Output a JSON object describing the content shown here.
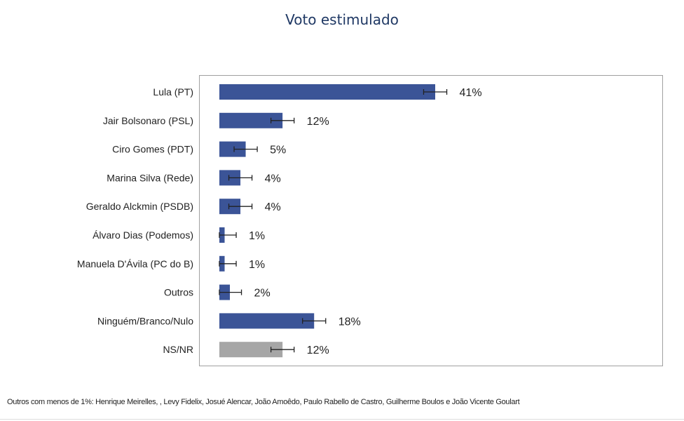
{
  "chart_data": {
    "type": "bar",
    "orientation": "horizontal",
    "title": "Voto estimulado",
    "categories": [
      "Lula (PT)",
      "Jair Bolsonaro (PSL)",
      "Ciro Gomes (PDT)",
      "Marina Silva (Rede)",
      "Geraldo Alckmin (PSDB)",
      "Álvaro Dias (Podemos)",
      "Manuela D'Ávila (PC do B)",
      "Outros",
      "Ninguém/Branco/Nulo",
      "NS/NR"
    ],
    "values": [
      41,
      12,
      5,
      4,
      4,
      1,
      1,
      2,
      18,
      12
    ],
    "data_labels": [
      "41%",
      "12%",
      "5%",
      "4%",
      "4%",
      "1%",
      "1%",
      "2%",
      "18%",
      "12%"
    ],
    "error_margin": 2.2,
    "colors": [
      "#3b5497",
      "#3b5497",
      "#3b5497",
      "#3b5497",
      "#3b5497",
      "#3b5497",
      "#3b5497",
      "#3b5497",
      "#3b5497",
      "#a6a6a6"
    ],
    "xlim": [
      0,
      84
    ],
    "grid": false,
    "legend": "none"
  },
  "footnote": "Outros com menos de 1%: Henrique Meirelles, , Levy Fidelix, Josué Alencar, João Amoêdo, Paulo Rabello de Castro, Guilherme Boulos e João Vicente Goulart"
}
